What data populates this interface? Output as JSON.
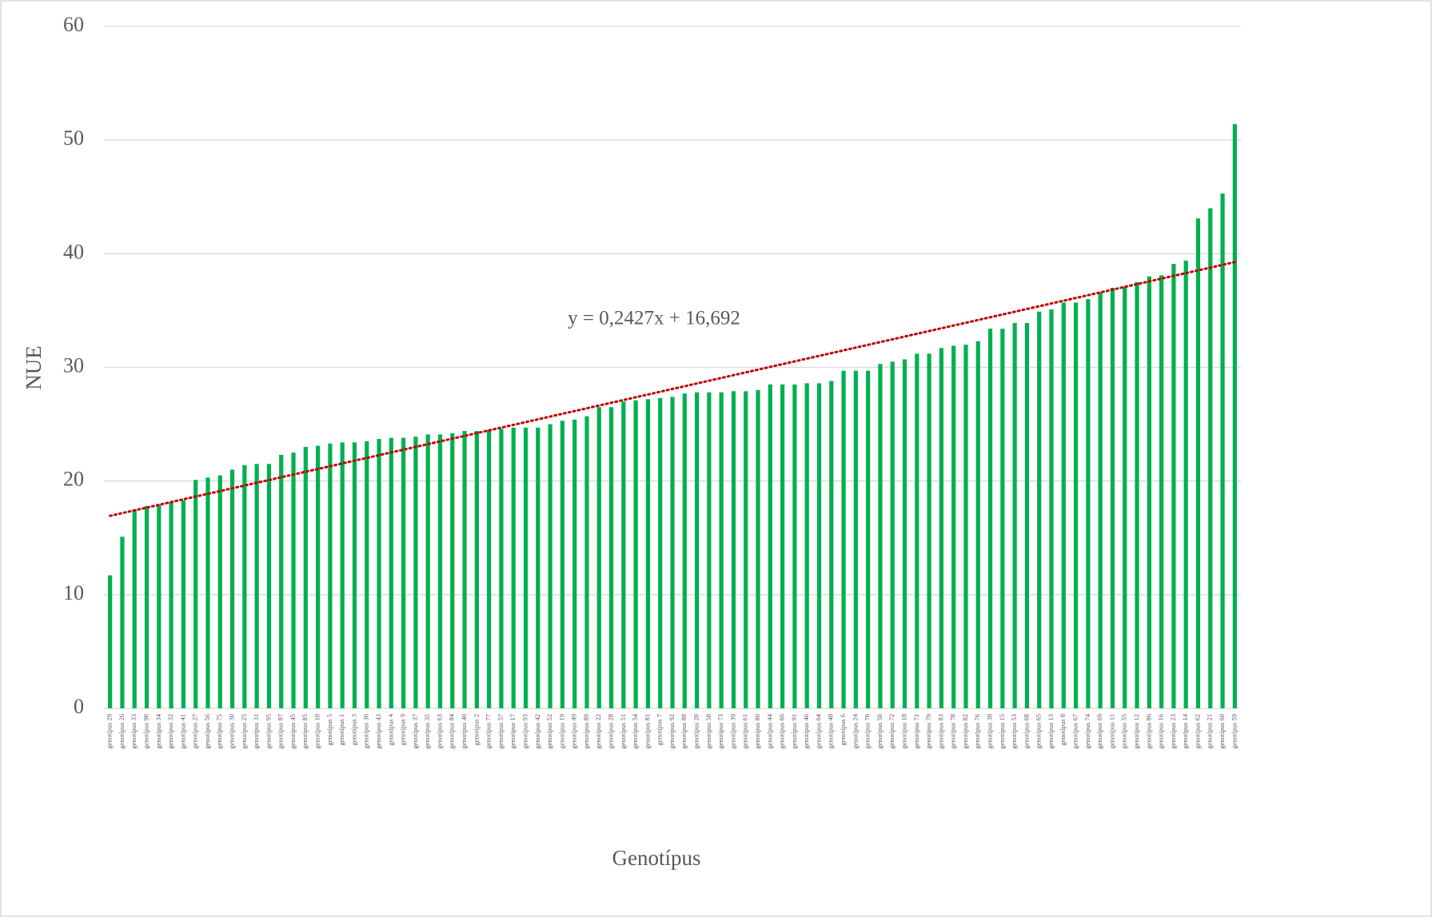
{
  "chart_data": {
    "type": "bar",
    "x_label": "Genotípus",
    "y_label": "NUE",
    "color": "#00b050",
    "grid": true,
    "ylim": [
      0,
      60
    ],
    "yticks": [
      0,
      10,
      20,
      30,
      40,
      50,
      60
    ],
    "categories": [
      "genotípus 29",
      "genotípus 26",
      "genotípus 33",
      "genotípus 90",
      "genotípus 34",
      "genotípus 32",
      "genotípus 41",
      "genotípus 27",
      "genotípus 56",
      "genotípus 75",
      "genotípus 30",
      "genotípus 25",
      "genotípus 31",
      "genotípus 95",
      "genotípus 87",
      "genotípus 45",
      "genotípus 85",
      "genotípus 10",
      "genotípus 5",
      "genotípus 1",
      "genotípus 3",
      "genotípus 36",
      "genotípus 43",
      "genotípus 4",
      "genotípus 9",
      "genotípus 37",
      "genotípus 35",
      "genotípus 63",
      "genotípus 84",
      "genotípus 40",
      "genotípus 2",
      "genotípus 77",
      "genotípus 57",
      "genotípus 17",
      "genotípus 93",
      "genotípus 42",
      "genotípus 52",
      "genotípus 19",
      "genotípus 49",
      "genotípus 89",
      "genotípus 22",
      "genotípus 28",
      "genotípus 51",
      "genotípus 54",
      "genotípus 81",
      "genotípus 7",
      "genotípus 92",
      "genotípus 88",
      "genotípus 20",
      "genotípus 58",
      "genotípus 73",
      "genotípus 39",
      "genotípus 61",
      "genotípus 80",
      "genotípus 44",
      "genotípus 66",
      "genotípus 91",
      "genotípus 46",
      "genotípus 64",
      "genotípus 48",
      "genotípus 6",
      "genotípus 24",
      "genotípus 70",
      "genotípus 50",
      "genotípus 72",
      "genotípus 18",
      "genotípus 71",
      "genotípus 79",
      "genotípus 83",
      "genotípus 78",
      "genotípus 82",
      "genotípus 76",
      "genotípus 38",
      "genotípus 15",
      "genotípus 53",
      "genotípus 68",
      "genotípus 65",
      "genotípus 13",
      "genotípus 8",
      "genotípus 67",
      "genotípus 74",
      "genotípus 69",
      "genotípus 11",
      "genotípus 55",
      "genotípus 12",
      "genotípus 86",
      "genotípus 16",
      "genotípus 23",
      "genotípus 14",
      "genotípus 62",
      "genotípus 21",
      "genotípus 60",
      "genotípus 59"
    ],
    "values": [
      11.7,
      15.1,
      17.5,
      17.8,
      17.9,
      18.1,
      18.3,
      20.1,
      20.3,
      20.5,
      21.0,
      21.4,
      21.5,
      21.5,
      22.3,
      22.5,
      23.0,
      23.1,
      23.3,
      23.4,
      23.4,
      23.5,
      23.7,
      23.8,
      23.8,
      23.9,
      24.1,
      24.1,
      24.2,
      24.4,
      24.4,
      24.5,
      24.6,
      24.7,
      24.7,
      24.7,
      25.0,
      25.3,
      25.4,
      25.7,
      26.5,
      26.5,
      27.0,
      27.1,
      27.2,
      27.3,
      27.4,
      27.7,
      27.8,
      27.8,
      27.8,
      27.9,
      27.9,
      28.0,
      28.5,
      28.5,
      28.5,
      28.6,
      28.6,
      28.8,
      29.7,
      29.7,
      29.7,
      30.3,
      30.5,
      30.7,
      31.2,
      31.2,
      31.7,
      31.9,
      32.0,
      32.3,
      33.4,
      33.4,
      33.9,
      33.9,
      34.9,
      35.1,
      35.7,
      35.7,
      36.0,
      36.6,
      37.0,
      37.1,
      37.5,
      38.0,
      38.1,
      39.1,
      39.4,
      43.1,
      44.0,
      45.3,
      51.4
    ],
    "trendline": {
      "label": "y = 0,2427x + 16,692",
      "slope": 0.2427,
      "intercept": 16.692,
      "color": "#c00000"
    }
  }
}
